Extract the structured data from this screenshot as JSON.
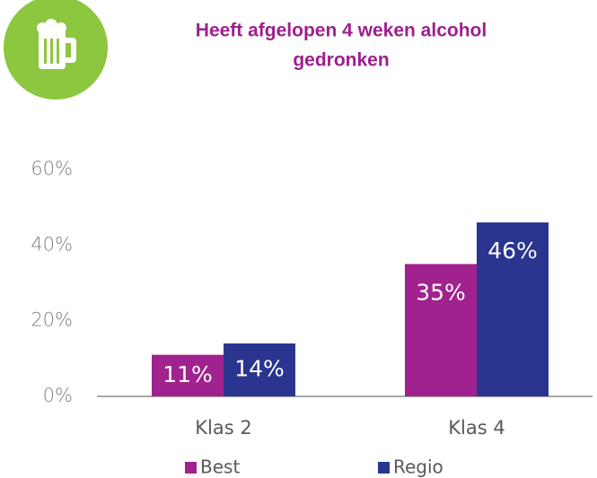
{
  "chart_data": {
    "type": "bar",
    "title_lines": [
      "Heeft afgelopen 4 weken alcohol",
      "gedronken"
    ],
    "categories": [
      "Klas 2",
      "Klas 4"
    ],
    "series": [
      {
        "name": "Best",
        "color": "#a0228e",
        "values": [
          11,
          35
        ],
        "value_labels": [
          "11%",
          "35%"
        ]
      },
      {
        "name": "Regio",
        "color": "#2a3590",
        "values": [
          14,
          46
        ],
        "value_labels": [
          "14%",
          "46%"
        ]
      }
    ],
    "ylim": [
      0,
      60
    ],
    "yticks": [
      {
        "value": 0,
        "label": "0%"
      },
      {
        "value": 20,
        "label": "20%"
      },
      {
        "value": 40,
        "label": "40%"
      },
      {
        "value": 60,
        "label": "60%"
      }
    ]
  }
}
